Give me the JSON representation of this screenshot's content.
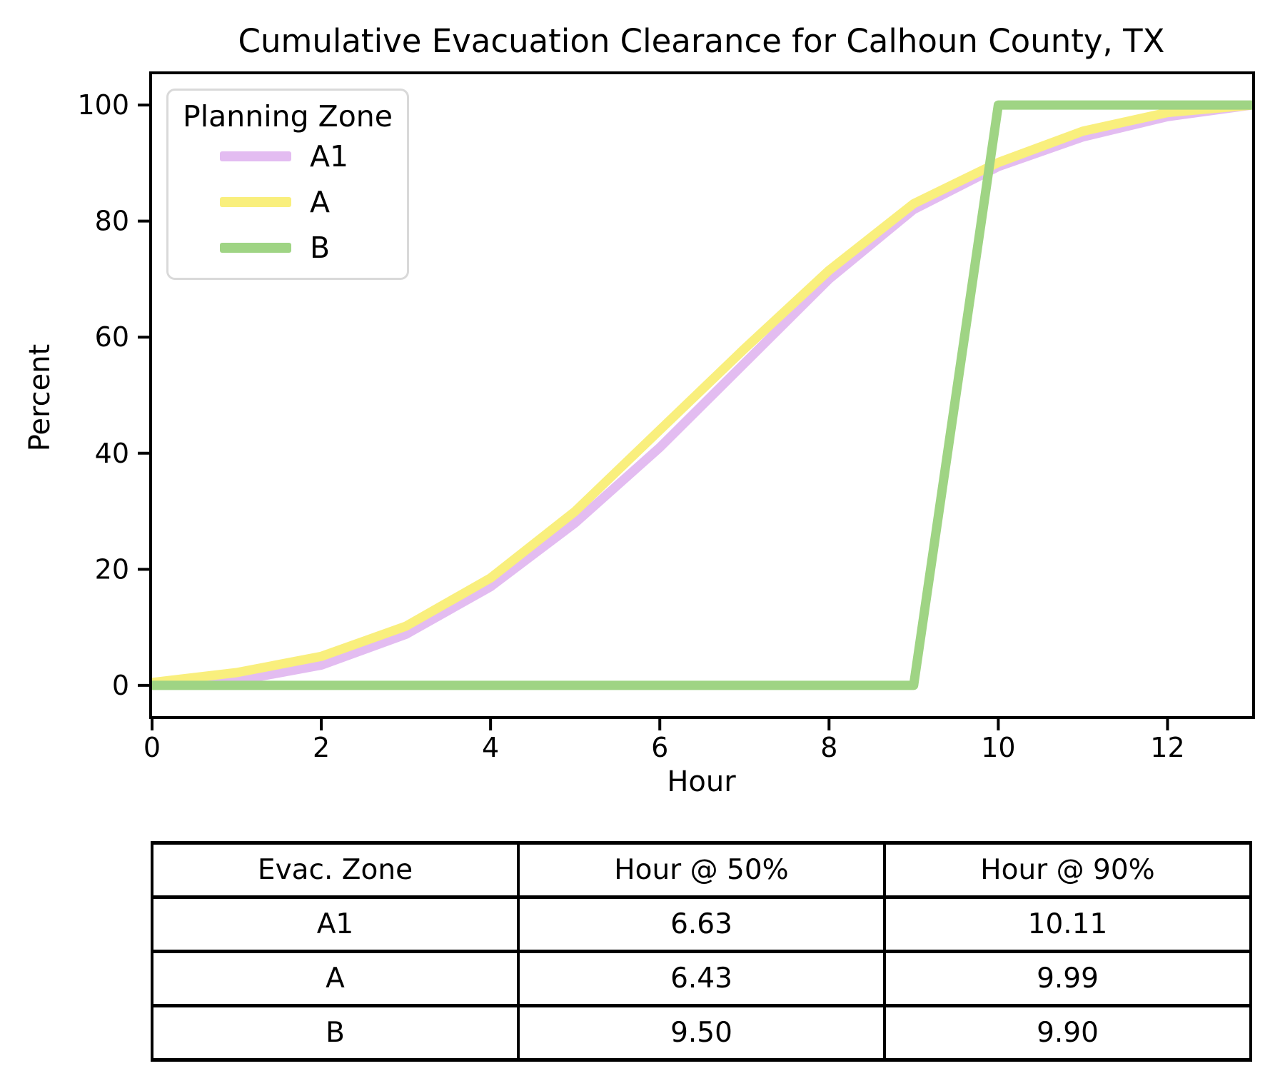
{
  "chart_data": {
    "type": "line",
    "title": "Cumulative Evacuation Clearance for Calhoun County, TX",
    "xlabel": "Hour",
    "ylabel": "Percent",
    "xlim": [
      0,
      13
    ],
    "ylim": [
      -5.3,
      105.3
    ],
    "xticks": [
      0,
      2,
      4,
      6,
      8,
      10,
      12
    ],
    "yticks": [
      0,
      20,
      40,
      60,
      80,
      100
    ],
    "grid": false,
    "legend": {
      "title": "Planning Zone",
      "position": "upper left"
    },
    "x_hours": [
      0,
      1,
      2,
      3,
      4,
      5,
      6,
      7,
      8,
      9,
      10,
      11,
      12,
      13
    ],
    "series": [
      {
        "name": "A1",
        "color": "#e3bcf1",
        "values": [
          0,
          0.8,
          3.5,
          8.8,
          17,
          28,
          41,
          55.5,
          70,
          82,
          89.4,
          94.5,
          98,
          100
        ]
      },
      {
        "name": "A",
        "color": "#f9ef7d",
        "values": [
          0.5,
          2.2,
          5,
          10.2,
          18.5,
          30,
          44,
          58,
          71.5,
          83,
          90.1,
          95.5,
          98.7,
          100
        ]
      },
      {
        "name": "B",
        "color": "#9fd484",
        "values": [
          0,
          0,
          0,
          0,
          0,
          0,
          0,
          0,
          0,
          0,
          100,
          100,
          100,
          100
        ]
      }
    ]
  },
  "table": {
    "headers": [
      "Evac. Zone",
      "Hour @ 50%",
      "Hour @ 90%"
    ],
    "rows": [
      [
        "A1",
        "6.63",
        "10.11"
      ],
      [
        "A",
        "6.43",
        "9.99"
      ],
      [
        "B",
        "9.50",
        "9.90"
      ]
    ]
  }
}
